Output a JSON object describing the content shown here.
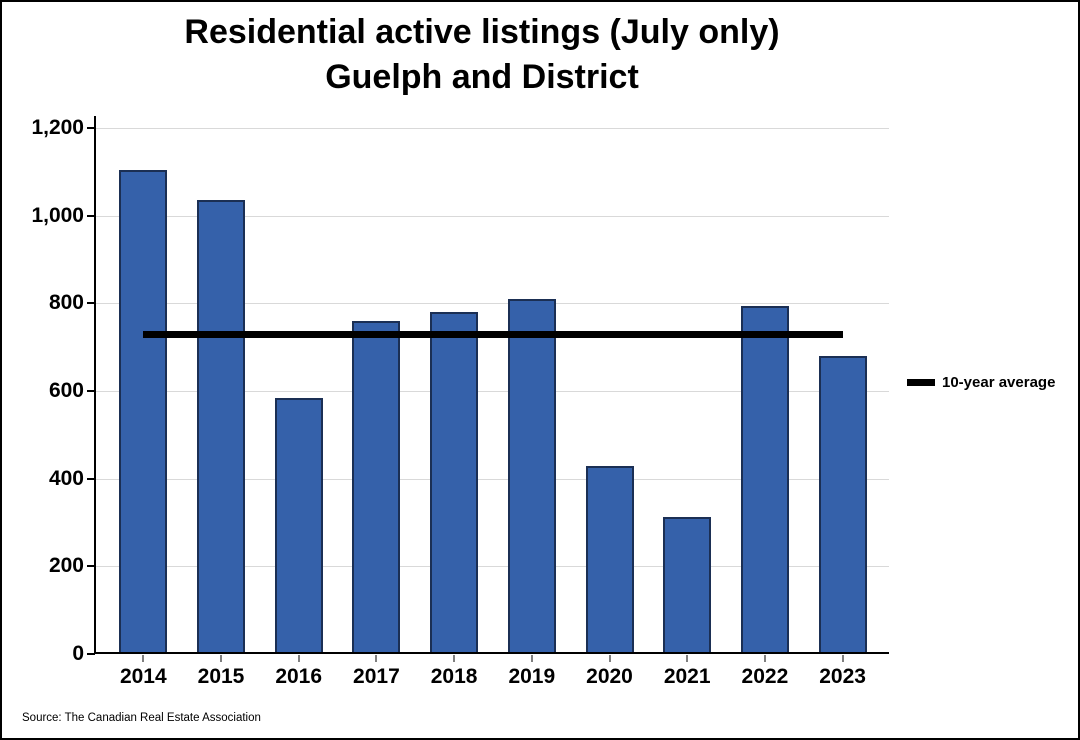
{
  "title": {
    "line1": "Residential active listings (July only)",
    "line2": "Guelph and District"
  },
  "legend": {
    "label": "10-year average",
    "swatch_color": "#000000"
  },
  "source": "Source: The Canadian Real Estate Association",
  "colors": {
    "bar_fill": "#3561aa",
    "bar_border": "#1b2f54",
    "gridline": "#d9d9d9",
    "axis": "#000000",
    "average_line": "#000000"
  },
  "chart_data": {
    "type": "bar",
    "title": "Residential active listings (July only) Guelph and District",
    "categories": [
      "2014",
      "2015",
      "2016",
      "2017",
      "2018",
      "2019",
      "2020",
      "2021",
      "2022",
      "2023"
    ],
    "values": [
      1105,
      1035,
      585,
      760,
      781,
      809,
      428,
      313,
      793,
      679
    ],
    "series_name": "Residential active listings (July)",
    "xlabel": "",
    "ylabel": "",
    "ylim": [
      0,
      1200
    ],
    "y_ticks": {
      "values": [
        0,
        200,
        400,
        600,
        800,
        1000,
        1200
      ],
      "labels": [
        "0",
        "200",
        "400",
        "600",
        "800",
        "1,000",
        "1,200"
      ]
    },
    "grid": "horizontal",
    "legend_position": "right",
    "average_line": {
      "label": "10-year average",
      "value": 729
    }
  }
}
